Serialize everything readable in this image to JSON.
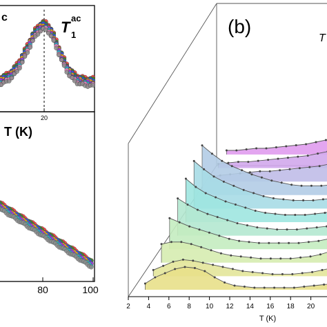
{
  "chart_data": [
    {
      "type": "scatter",
      "panel": "top-left (cropped)",
      "annotations": [
        "c"
      ],
      "peak_label": {
        "symbol": "T",
        "sup": "ac",
        "sub": "1"
      },
      "x_tick_labels": [
        "20"
      ],
      "peak_x": 20,
      "series_colors": [
        "#ff2a2a",
        "#2a8c2a",
        "#2a4dff",
        "#ffb000",
        "#9a2aff",
        "#20c0c0",
        "#ff7fc0",
        "#8c8c8c"
      ],
      "grid": false
    },
    {
      "type": "scatter",
      "panel": "bottom-left (cropped)",
      "xlabel": "T (K)",
      "x_tick_labels": [
        "80",
        "100"
      ],
      "xlim": [
        55,
        100
      ],
      "series_colors": [
        "#ff2a2a",
        "#2a8c2a",
        "#2a4dff",
        "#ffb000",
        "#9a2aff",
        "#20c0c0",
        "#8c8c8c"
      ],
      "grid": false
    },
    {
      "type": "line",
      "panel": "(b)",
      "panel_label": "(b)",
      "title_fragment": "T",
      "xlabel": "T (K)",
      "x_tick_labels": [
        "2",
        "4",
        "6",
        "8",
        "10",
        "12",
        "14",
        "16",
        "18",
        "20",
        "2"
      ],
      "xlim": [
        2,
        22
      ],
      "style": "3D waterfall, stacked filled curves",
      "grid": false,
      "series": [
        {
          "values_x": [
            3,
            4,
            5,
            6,
            7,
            8,
            9,
            10,
            11,
            12,
            13,
            14,
            15,
            16,
            17,
            18,
            19,
            20,
            21,
            22
          ],
          "values_y": [
            0.3,
            0.6,
            0.8,
            1.0,
            1.1,
            1.05,
            0.9,
            0.6,
            0.35,
            0.2,
            0.15,
            0.1,
            0.1,
            0.1,
            0.1,
            0.1,
            0.15,
            0.2,
            0.25,
            0.3
          ],
          "color": "#e8e08a"
        },
        {
          "values_x": [
            3,
            4,
            5,
            6,
            7,
            8,
            9,
            10,
            11,
            12,
            13,
            14,
            15,
            16,
            17,
            18,
            19,
            20,
            21,
            22
          ],
          "values_y": [
            0.3,
            0.5,
            0.7,
            0.8,
            0.75,
            0.65,
            0.55,
            0.45,
            0.35,
            0.25,
            0.2,
            0.15,
            0.1,
            0.1,
            0.1,
            0.15,
            0.2,
            0.3,
            0.4,
            0.5
          ],
          "color": "#e3e69a"
        },
        {
          "values_x": [
            3,
            4,
            5,
            6,
            7,
            8,
            9,
            10,
            11,
            12,
            13,
            14,
            15,
            16,
            17,
            18,
            19,
            20,
            21,
            22
          ],
          "values_y": [
            0.9,
            1.0,
            1.0,
            0.9,
            0.75,
            0.6,
            0.45,
            0.35,
            0.3,
            0.25,
            0.2,
            0.2,
            0.2,
            0.2,
            0.25,
            0.3,
            0.4,
            0.55,
            0.7,
            0.9
          ],
          "color": "#d6ecb0"
        },
        {
          "values_x": [
            3,
            4,
            5,
            6,
            7,
            8,
            9,
            10,
            11,
            12,
            13,
            14,
            15,
            16,
            17,
            18,
            19,
            20,
            21,
            22
          ],
          "values_y": [
            1.5,
            1.3,
            1.1,
            0.95,
            0.8,
            0.65,
            0.5,
            0.4,
            0.35,
            0.3,
            0.3,
            0.3,
            0.3,
            0.3,
            0.35,
            0.4,
            0.5,
            0.65,
            0.85,
            1.1
          ],
          "color": "#c4ecc0"
        },
        {
          "values_x": [
            3,
            4,
            5,
            6,
            7,
            8,
            9,
            10,
            11,
            12,
            13,
            14,
            15,
            16,
            17,
            18,
            19,
            20,
            21,
            22
          ],
          "values_y": [
            1.8,
            1.5,
            1.25,
            1.05,
            0.9,
            0.75,
            0.6,
            0.5,
            0.4,
            0.35,
            0.3,
            0.3,
            0.3,
            0.35,
            0.4,
            0.45,
            0.6,
            0.8,
            1.05,
            1.4
          ],
          "color": "#b4e8d0"
        },
        {
          "values_x": [
            3,
            4,
            5,
            6,
            7,
            8,
            9,
            10,
            11,
            12,
            13,
            14,
            15,
            16,
            17,
            18,
            19,
            20,
            21,
            22
          ],
          "values_y": [
            2.1,
            1.7,
            1.4,
            1.2,
            1.0,
            0.85,
            0.7,
            0.55,
            0.45,
            0.4,
            0.35,
            0.35,
            0.35,
            0.4,
            0.45,
            0.55,
            0.7,
            0.95,
            1.3,
            1.8
          ],
          "color": "#9fe6e0"
        },
        {
          "values_x": [
            3,
            4,
            5,
            6,
            7,
            8,
            9,
            10,
            11,
            12,
            13,
            14,
            15,
            16,
            17,
            18,
            19,
            20,
            21,
            22
          ],
          "values_y": [
            2.3,
            1.9,
            1.55,
            1.3,
            1.1,
            0.9,
            0.75,
            0.6,
            0.5,
            0.45,
            0.4,
            0.4,
            0.4,
            0.45,
            0.5,
            0.65,
            0.85,
            1.15,
            1.6,
            2.3
          ],
          "color": "#a7dce6"
        },
        {
          "values_x": [
            3,
            4,
            5,
            6,
            7,
            8,
            9,
            10,
            11,
            12,
            13,
            14,
            15,
            16,
            17,
            18,
            19,
            20,
            21,
            22
          ],
          "values_y": [
            2.4,
            2.0,
            1.65,
            1.4,
            1.2,
            1.0,
            0.85,
            0.7,
            0.6,
            0.5,
            0.45,
            0.45,
            0.45,
            0.5,
            0.6,
            0.75,
            1.0,
            1.4,
            2.0,
            2.8
          ],
          "color": "#b2cce6"
        },
        {
          "values_x": [
            3,
            4,
            5,
            6,
            7,
            8,
            9,
            10,
            11,
            12,
            13,
            14,
            15,
            16,
            17,
            18,
            19,
            20,
            21,
            22
          ],
          "values_y": [
            0.2,
            0.3,
            0.35,
            0.4,
            0.45,
            0.5,
            0.5,
            0.55,
            0.6,
            0.65,
            0.7,
            0.75,
            0.85,
            0.95,
            1.1,
            1.3,
            1.6,
            2.0,
            2.6,
            3.4
          ],
          "color": "#c0bce8"
        },
        {
          "values_x": [
            3,
            4,
            5,
            6,
            7,
            8,
            9,
            10,
            11,
            12,
            13,
            14,
            15,
            16,
            17,
            18,
            19,
            20,
            21,
            22
          ],
          "values_y": [
            0.2,
            0.25,
            0.3,
            0.3,
            0.35,
            0.4,
            0.45,
            0.5,
            0.55,
            0.6,
            0.7,
            0.8,
            0.95,
            1.1,
            1.3,
            1.6,
            2.0,
            2.5,
            3.1,
            3.8
          ],
          "color": "#d2a8ec"
        },
        {
          "values_x": [
            3,
            4,
            5,
            6,
            7,
            8,
            9,
            10,
            11,
            12,
            13,
            14,
            15,
            16,
            17,
            18,
            19,
            20,
            21,
            22
          ],
          "values_y": [
            0.2,
            0.2,
            0.25,
            0.3,
            0.3,
            0.35,
            0.4,
            0.45,
            0.5,
            0.6,
            0.7,
            0.85,
            1.0,
            1.2,
            1.5,
            1.9,
            2.4,
            3.0,
            3.8,
            4.6
          ],
          "color": "#e09cee"
        }
      ]
    }
  ]
}
